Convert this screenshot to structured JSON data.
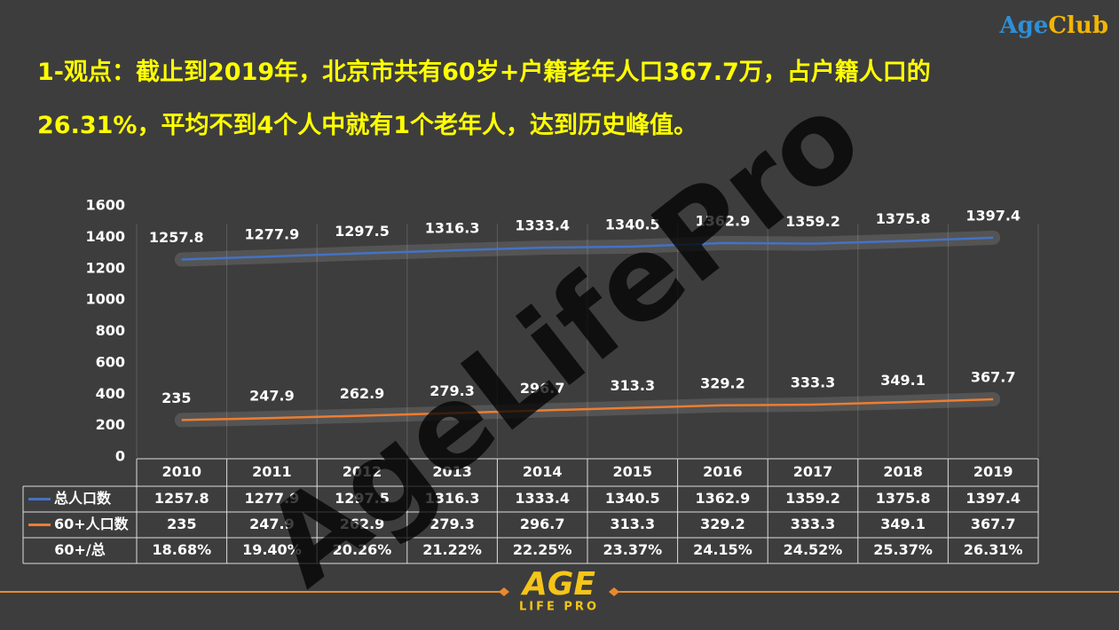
{
  "brand": {
    "part1": "Age",
    "part2": "Club"
  },
  "headline": "1-观点：截止到2019年，北京市共有60岁+户籍老年人口367.7万，占户籍人口的26.31%，平均不到4个人中就有1个老年人，达到历史峰值。",
  "watermark": "AgeLifePro",
  "footer_logo": {
    "top": "AGE",
    "bottom": "LIFE PRO"
  },
  "chart_data": {
    "type": "line",
    "categories": [
      "2010",
      "2011",
      "2012",
      "2013",
      "2014",
      "2015",
      "2016",
      "2017",
      "2018",
      "2019"
    ],
    "series": [
      {
        "name": "总人口数",
        "color": "#4472c4",
        "values": [
          1257.8,
          1277.9,
          1297.5,
          1316.3,
          1333.4,
          1340.5,
          1362.9,
          1359.2,
          1375.8,
          1397.4
        ]
      },
      {
        "name": "60+人口数",
        "color": "#ed7d31",
        "values": [
          235,
          247.9,
          262.9,
          279.3,
          296.7,
          313.3,
          329.2,
          333.3,
          349.1,
          367.7
        ]
      }
    ],
    "ratio_row": {
      "name": "60+/总",
      "labels": [
        "18.68%",
        "19.40%",
        "20.26%",
        "21.22%",
        "22.25%",
        "23.37%",
        "24.15%",
        "24.52%",
        "25.37%",
        "26.31%"
      ]
    },
    "ylim": [
      0,
      1600
    ],
    "yticks": [
      0,
      200,
      400,
      600,
      800,
      1000,
      1200,
      1400,
      1600
    ],
    "grid": true
  }
}
